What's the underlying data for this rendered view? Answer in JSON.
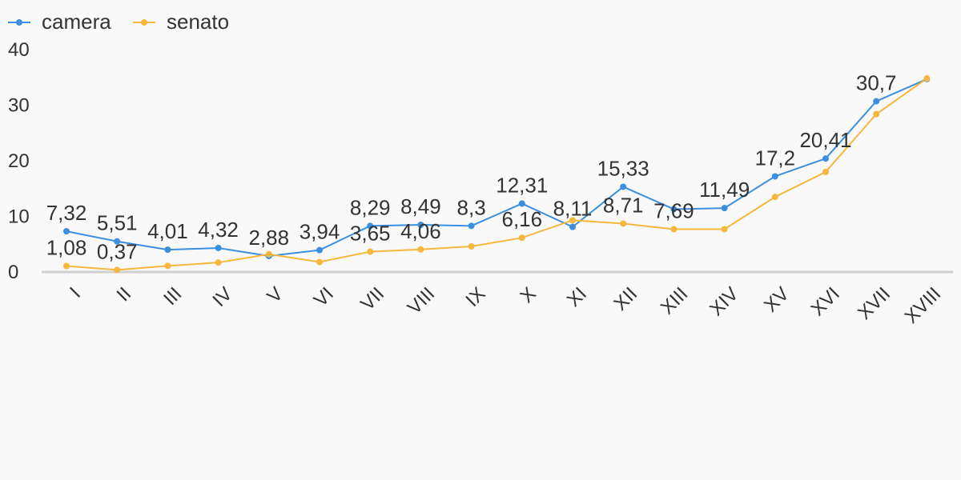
{
  "chart_data": {
    "type": "line",
    "categories": [
      "I",
      "II",
      "III",
      "IV",
      "V",
      "VI",
      "VII",
      "VIII",
      "IX",
      "X",
      "XI",
      "XII",
      "XIII",
      "XIV",
      "XV",
      "XVI",
      "XVII",
      "XVIII"
    ],
    "series": [
      {
        "name": "camera",
        "color": "#3b8fe0",
        "values": [
          7.32,
          5.51,
          4.01,
          4.32,
          2.88,
          3.94,
          8.29,
          8.49,
          8.3,
          12.31,
          8.11,
          15.33,
          11.3,
          11.49,
          17.2,
          20.41,
          30.7,
          34.7
        ],
        "labels": [
          "7,32",
          "5,51",
          "4,01",
          "4,32",
          "2,88",
          "3,94",
          "8,29",
          "8,49",
          "8,3",
          "12,31",
          "8,11",
          "15,33",
          "",
          "11,49",
          "17,2",
          "20,41",
          "30,7",
          ""
        ]
      },
      {
        "name": "senato",
        "color": "#f6b73c",
        "values": [
          1.08,
          0.37,
          1.1,
          1.7,
          3.2,
          1.8,
          3.65,
          4.06,
          4.6,
          6.16,
          9.3,
          8.71,
          7.69,
          7.7,
          13.5,
          18.0,
          28.4,
          34.8
        ],
        "labels": [
          "1,08",
          "0,37",
          "",
          "",
          "",
          "",
          "3,65",
          "4,06",
          "",
          "6,16",
          "",
          "8,71",
          "7,69",
          "",
          "",
          "",
          "",
          ""
        ]
      }
    ],
    "yticks": [
      0,
      10,
      20,
      30,
      40
    ],
    "ylim": [
      0,
      40
    ],
    "legend_position": "top-left",
    "grid": false
  }
}
